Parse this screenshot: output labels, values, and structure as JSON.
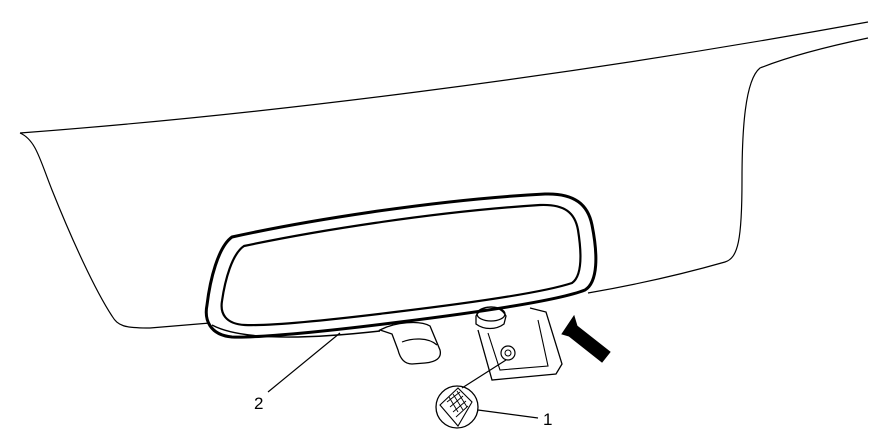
{
  "callouts": [
    {
      "id": "1",
      "label": "1"
    },
    {
      "id": "2",
      "label": "2"
    }
  ],
  "colors": {
    "stroke": "#000000",
    "background": "#ffffff",
    "arrow": "#000000"
  },
  "icons": {
    "direction_arrow": "arrow-up-left-icon",
    "fastener": "screw-head-icon"
  }
}
